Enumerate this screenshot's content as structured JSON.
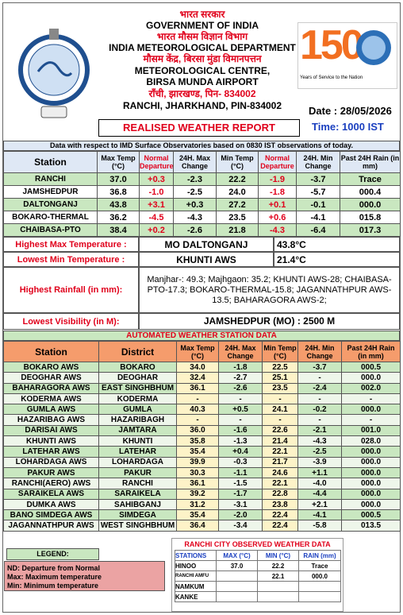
{
  "header": {
    "gov_hi": "भारत सरकार",
    "gov_en": "GOVERNMENT OF INDIA",
    "dept_hi": "भारत मौसम विज्ञान विभाग",
    "dept_en": "INDIA METEOROLOGICAL DEPARTMENT",
    "centre_hi": "मौसम केंद्र, बिरसा मुंडा विमानपत्तन",
    "centre_en": "METEOROLOGICAL CENTRE,",
    "airport_en": "BIRSA MUNDA AIRPORT",
    "city_hi": "रॉंची, झारखण्ड, पिन- 834002",
    "city_en": "RANCHI, JHARKHAND, PIN-834002"
  },
  "logo": {
    "number": "150",
    "tagline": "Years of Service to the Nation"
  },
  "report": {
    "title": "REALISED WEATHER REPORT",
    "date": "Date : 28/05/2026",
    "time": "Time: 1000 IST"
  },
  "surface": {
    "note": "Data with respect to IMD Surface Observatories based on 0830 IST observations of today.",
    "columns": [
      "Station",
      "Max Temp (°C)",
      "Normal Departure",
      "24H. Max Change",
      "Min Temp (°C)",
      "Normal Departure",
      "24H. Min Change",
      "Past 24H Rain (in mm)"
    ],
    "rows": [
      [
        "RANCHI",
        "37.0",
        "+0.3",
        "-2.3",
        "22.2",
        "-1.9",
        "-3.7",
        "Trace"
      ],
      [
        "JAMSHEDPUR",
        "36.8",
        "-1.0",
        "-2.5",
        "24.0",
        "-1.8",
        "-5.7",
        "000.4"
      ],
      [
        "DALTONGANJ",
        "43.8",
        "+3.1",
        "+0.3",
        "27.2",
        "+0.1",
        "-0.1",
        "000.0"
      ],
      [
        "BOKARO-THERMAL",
        "36.2",
        "-4.5",
        "-4.3",
        "23.5",
        "+0.6",
        "-4.1",
        "015.8"
      ],
      [
        "CHAIBASA-PTO",
        "38.4",
        "+0.2",
        "-2.6",
        "21.8",
        "-4.3",
        "-6.4",
        "017.3"
      ]
    ]
  },
  "highlights": [
    {
      "label": "Highest Max Temperature :",
      "station": "MO DALTONGANJ",
      "value": "43.8°C"
    },
    {
      "label": "Lowest Min Temperature :",
      "station": "KHUNTI AWS",
      "value": "21.4°C"
    },
    {
      "label": "Highest Rainfall (in mm):",
      "text": "Manjhar-: 49.3; Majhgaon: 35.2; KHUNTI AWS-28; CHAIBASA-PTO-17.3; BOKARO-THERMAL-15.8; JAGANNATHPUR AWS-13.5; BAHARAGORA AWS-2;"
    },
    {
      "label": "Lowest Visibility (in M):",
      "text": "JAMSHEDPUR (MO) : 2500 M"
    }
  ],
  "aws": {
    "title": "AUTOMATED WEATHER STATION DATA",
    "columns": [
      "Station",
      "District",
      "Max Temp (°C)",
      "24H. Max Change",
      "Min Temp (°C)",
      "24H. Min Change",
      "Past 24H Rain (in mm)"
    ],
    "rows": [
      [
        "BOKARO AWS",
        "BOKARO",
        "34.0",
        "-1.8",
        "22.5",
        "-3.7",
        "000.5"
      ],
      [
        "DEOGHAR AWS",
        "DEOGHAR",
        "32.4",
        "-2.7",
        "25.1",
        "-",
        "000.0"
      ],
      [
        "BAHARAGORA AWS",
        "EAST SINGHBHUM",
        "36.1",
        "-2.6",
        "23.5",
        "-2.4",
        "002.0"
      ],
      [
        "KODERMA AWS",
        "KODERMA",
        "-",
        "-",
        "-",
        "-",
        "-"
      ],
      [
        "GUMLA AWS",
        "GUMLA",
        "40.3",
        "+0.5",
        "24.1",
        "-0.2",
        "000.0"
      ],
      [
        "HAZARIBAG AWS",
        "HAZARIBAGH",
        "-",
        "-",
        "-",
        "-",
        "-"
      ],
      [
        "DARISAI AWS",
        "JAMTARA",
        "36.0",
        "-1.6",
        "22.6",
        "-2.1",
        "001.0"
      ],
      [
        "KHUNTI AWS",
        "KHUNTI",
        "35.8",
        "-1.3",
        "21.4",
        "-4.3",
        "028.0"
      ],
      [
        "LATEHAR AWS",
        "LATEHAR",
        "35.4",
        "+0.4",
        "22.1",
        "-2.5",
        "000.0"
      ],
      [
        "LOHARDAGA AWS",
        "LOHARDAGA",
        "39.9",
        "-0.3",
        "21.7",
        "-3.9",
        "000.0"
      ],
      [
        "PAKUR AWS",
        "PAKUR",
        "30.3",
        "-1.1",
        "24.6",
        "+1.1",
        "000.0"
      ],
      [
        "RANCHI(AERO) AWS",
        "RANCHI",
        "36.1",
        "-1.5",
        "22.1",
        "-4.0",
        "000.0"
      ],
      [
        "SARAIKELA AWS",
        "SARAIKELA",
        "39.2",
        "-1.7",
        "22.8",
        "-4.4",
        "000.0"
      ],
      [
        "DUMKA AWS",
        "SAHIBGANJ",
        "31.2",
        "-3.1",
        "23.8",
        "+2.1",
        "000.0"
      ],
      [
        "BANO SIMDEGA AWS",
        "SIMDEGA",
        "35.4",
        "-2.0",
        "22.4",
        "-4.1",
        "000.5"
      ],
      [
        "JAGANNATHPUR AWS",
        "WEST SINGHBHUM",
        "36.4",
        "-3.4",
        "22.4",
        "-5.8",
        "013.5"
      ]
    ]
  },
  "legend": {
    "title": "LEGEND:",
    "items": [
      "ND: Departure from Normal",
      "Max: Maximum temperature",
      "Min: Minimum temperature"
    ]
  },
  "city": {
    "title": "RANCHI CITY OBSERVED WEATHER DATA",
    "columns": [
      "STATIONS",
      "MAX (°C)",
      "MIN (°C)",
      "RAIN (mm)"
    ],
    "rows": [
      [
        "HINOO",
        "37.0",
        "22.2",
        "Trace"
      ],
      [
        "RANCHI AMFU",
        null,
        "22.1",
        "000.0"
      ],
      [
        "NAMKUM",
        null,
        null,
        null
      ],
      [
        "KANKE",
        null,
        null,
        null
      ]
    ]
  }
}
